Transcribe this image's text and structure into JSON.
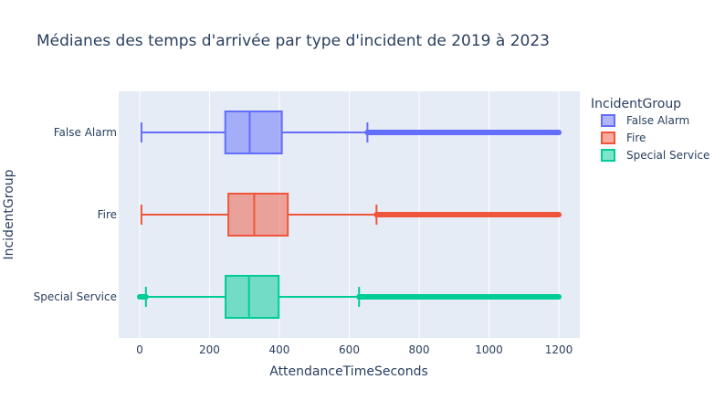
{
  "chart_data": {
    "type": "box",
    "orientation": "horizontal",
    "title": "Médianes des temps d'arrivée par type d'incident de 2019 à 2023",
    "xlabel": "AttendanceTimeSeconds",
    "ylabel": "IncidentGroup",
    "xlim": [
      -60,
      1260
    ],
    "xticks": [
      0,
      200,
      400,
      600,
      800,
      1000,
      1200
    ],
    "xtick_labels": [
      "0",
      "200",
      "400",
      "600",
      "800",
      "1000",
      "1200"
    ],
    "grid": true,
    "legend": {
      "title": "IncidentGroup",
      "placement": "top-right"
    },
    "categories": [
      "False Alarm",
      "Fire",
      "Special Service"
    ],
    "series": [
      {
        "name": "False Alarm",
        "color": "#636efa",
        "min": 5,
        "q1": 245,
        "median": 315,
        "q3": 407,
        "upper_fence": 652,
        "outliers_range": [
          652,
          1200
        ]
      },
      {
        "name": "Fire",
        "color": "#ef553b",
        "min": 5,
        "q1": 254,
        "median": 328,
        "q3": 424,
        "upper_fence": 678,
        "outliers_range": [
          678,
          1200
        ]
      },
      {
        "name": "Special Service",
        "color": "#00cc96",
        "min": 18,
        "q1": 246,
        "median": 313,
        "q3": 398,
        "upper_fence": 628,
        "outliers_range": [
          628,
          1200
        ],
        "low_outliers_range": [
          0,
          18
        ]
      }
    ]
  }
}
